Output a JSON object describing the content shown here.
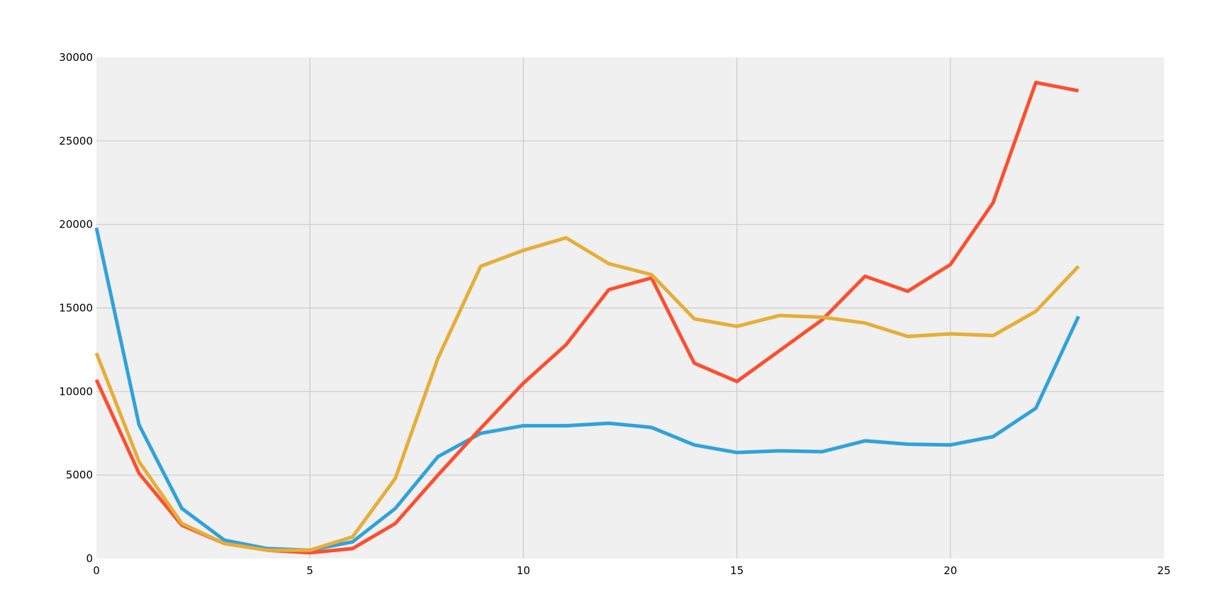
{
  "chart_data": {
    "type": "line",
    "title": "",
    "xlabel": "",
    "ylabel": "",
    "xlim": [
      0,
      25
    ],
    "ylim": [
      0,
      30000
    ],
    "x_ticks": [
      "0",
      "5",
      "10",
      "15",
      "20",
      "25"
    ],
    "y_ticks": [
      "0",
      "5000",
      "10000",
      "15000",
      "20000",
      "25000",
      "30000"
    ],
    "grid": true,
    "legend": "none",
    "x": [
      0,
      1,
      2,
      3,
      4,
      5,
      6,
      7,
      8,
      9,
      10,
      11,
      12,
      13,
      14,
      15,
      16,
      17,
      18,
      19,
      20,
      21,
      22,
      23
    ],
    "series": [
      {
        "color": "#30a2da",
        "values": [
          19800,
          8000,
          3000,
          1100,
          600,
          500,
          1000,
          3000,
          6100,
          7500,
          7950,
          7950,
          8100,
          7850,
          6800,
          6350,
          6450,
          6400,
          7050,
          6850,
          6800,
          7300,
          9000,
          14500
        ]
      },
      {
        "color": "#fc4f30",
        "values": [
          10700,
          5100,
          2000,
          900,
          500,
          350,
          600,
          2100,
          5000,
          7800,
          10500,
          12800,
          16100,
          16800,
          11700,
          10600,
          12450,
          14300,
          16900,
          16000,
          17600,
          21300,
          28500,
          28000
        ]
      },
      {
        "color": "#e5ae38",
        "values": [
          12300,
          5800,
          2100,
          900,
          500,
          500,
          1300,
          4800,
          12000,
          17500,
          18450,
          19200,
          17650,
          17000,
          14350,
          13900,
          14550,
          14450,
          14100,
          13300,
          13450,
          13350,
          14800,
          17500
        ]
      }
    ]
  }
}
